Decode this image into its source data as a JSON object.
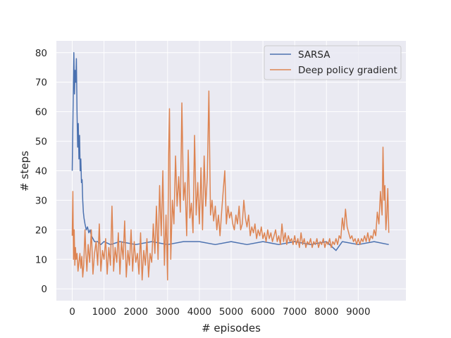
{
  "chart_data": {
    "type": "line",
    "title": "",
    "xlabel": "# episodes",
    "ylabel": "# steps",
    "xlim": [
      -500,
      10500
    ],
    "ylim": [
      -4,
      84
    ],
    "xticks": [
      0,
      1000,
      2000,
      3000,
      4000,
      5000,
      6000,
      7000,
      8000,
      9000
    ],
    "yticks": [
      0,
      10,
      20,
      30,
      40,
      50,
      60,
      70,
      80
    ],
    "grid": true,
    "background_color": "#eaeaf2",
    "legend_placement": "upper right",
    "series": [
      {
        "name": "SARSA",
        "color": "#4c72b0",
        "points": [
          [
            0,
            40
          ],
          [
            30,
            65
          ],
          [
            50,
            80
          ],
          [
            70,
            66
          ],
          [
            90,
            74
          ],
          [
            110,
            70
          ],
          [
            130,
            78
          ],
          [
            150,
            60
          ],
          [
            170,
            48
          ],
          [
            190,
            56
          ],
          [
            210,
            44
          ],
          [
            230,
            52
          ],
          [
            250,
            40
          ],
          [
            270,
            44
          ],
          [
            290,
            36
          ],
          [
            310,
            37
          ],
          [
            330,
            30
          ],
          [
            350,
            26
          ],
          [
            370,
            24
          ],
          [
            400,
            22
          ],
          [
            440,
            20
          ],
          [
            480,
            21
          ],
          [
            520,
            19
          ],
          [
            560,
            20
          ],
          [
            600,
            18
          ],
          [
            650,
            17
          ],
          [
            700,
            16
          ],
          [
            800,
            16
          ],
          [
            900,
            15
          ],
          [
            1000,
            16
          ],
          [
            1200,
            15
          ],
          [
            1500,
            16
          ],
          [
            2000,
            15
          ],
          [
            2500,
            16
          ],
          [
            3000,
            15
          ],
          [
            3500,
            16
          ],
          [
            4000,
            16
          ],
          [
            4500,
            15
          ],
          [
            5000,
            16
          ],
          [
            5500,
            15
          ],
          [
            6000,
            16
          ],
          [
            6500,
            15
          ],
          [
            7000,
            16
          ],
          [
            7500,
            15
          ],
          [
            8000,
            16
          ],
          [
            8300,
            13
          ],
          [
            8500,
            16
          ],
          [
            9000,
            15
          ],
          [
            9500,
            16
          ],
          [
            9960,
            15
          ]
        ]
      },
      {
        "name": "Deep policy gradient",
        "color": "#dd8452",
        "points": [
          [
            0,
            18
          ],
          [
            20,
            33
          ],
          [
            40,
            10
          ],
          [
            60,
            20
          ],
          [
            80,
            8
          ],
          [
            100,
            14
          ],
          [
            120,
            10
          ],
          [
            150,
            12
          ],
          [
            180,
            6
          ],
          [
            210,
            9
          ],
          [
            240,
            12
          ],
          [
            270,
            7
          ],
          [
            300,
            11
          ],
          [
            330,
            4
          ],
          [
            360,
            8
          ],
          [
            400,
            20
          ],
          [
            430,
            12
          ],
          [
            460,
            6
          ],
          [
            500,
            15
          ],
          [
            550,
            9
          ],
          [
            600,
            20
          ],
          [
            650,
            5
          ],
          [
            700,
            12
          ],
          [
            750,
            16
          ],
          [
            800,
            8
          ],
          [
            850,
            22
          ],
          [
            900,
            6
          ],
          [
            950,
            13
          ],
          [
            1000,
            10
          ],
          [
            1050,
            17
          ],
          [
            1100,
            5
          ],
          [
            1150,
            14
          ],
          [
            1200,
            8
          ],
          [
            1250,
            28
          ],
          [
            1300,
            6
          ],
          [
            1350,
            14
          ],
          [
            1400,
            9
          ],
          [
            1450,
            19
          ],
          [
            1500,
            5
          ],
          [
            1550,
            16
          ],
          [
            1600,
            10
          ],
          [
            1650,
            23
          ],
          [
            1700,
            4
          ],
          [
            1750,
            13
          ],
          [
            1800,
            8
          ],
          [
            1850,
            20
          ],
          [
            1900,
            6
          ],
          [
            1950,
            16
          ],
          [
            2000,
            9
          ],
          [
            2050,
            12
          ],
          [
            2100,
            5
          ],
          [
            2150,
            19
          ],
          [
            2200,
            3
          ],
          [
            2250,
            13
          ],
          [
            2300,
            8
          ],
          [
            2350,
            17
          ],
          [
            2400,
            4
          ],
          [
            2450,
            12
          ],
          [
            2500,
            9
          ],
          [
            2550,
            22
          ],
          [
            2600,
            12
          ],
          [
            2650,
            28
          ],
          [
            2700,
            10
          ],
          [
            2750,
            35
          ],
          [
            2800,
            18
          ],
          [
            2850,
            40
          ],
          [
            2900,
            8
          ],
          [
            2950,
            25
          ],
          [
            3000,
            3
          ],
          [
            3030,
            45
          ],
          [
            3060,
            61
          ],
          [
            3100,
            10
          ],
          [
            3150,
            30
          ],
          [
            3200,
            22
          ],
          [
            3250,
            45
          ],
          [
            3300,
            28
          ],
          [
            3350,
            38
          ],
          [
            3400,
            26
          ],
          [
            3450,
            63
          ],
          [
            3500,
            30
          ],
          [
            3550,
            36
          ],
          [
            3600,
            18
          ],
          [
            3650,
            47
          ],
          [
            3700,
            24
          ],
          [
            3750,
            29
          ],
          [
            3800,
            19
          ],
          [
            3850,
            52
          ],
          [
            3900,
            25
          ],
          [
            3950,
            36
          ],
          [
            4000,
            22
          ],
          [
            4050,
            41
          ],
          [
            4100,
            20
          ],
          [
            4150,
            45
          ],
          [
            4200,
            28
          ],
          [
            4250,
            38
          ],
          [
            4300,
            67
          ],
          [
            4350,
            25
          ],
          [
            4400,
            30
          ],
          [
            4450,
            23
          ],
          [
            4500,
            28
          ],
          [
            4550,
            20
          ],
          [
            4600,
            25
          ],
          [
            4650,
            18
          ],
          [
            4700,
            26
          ],
          [
            4750,
            33
          ],
          [
            4800,
            40
          ],
          [
            4850,
            22
          ],
          [
            4900,
            28
          ],
          [
            4950,
            24
          ],
          [
            5000,
            26
          ],
          [
            5050,
            22
          ],
          [
            5100,
            20
          ],
          [
            5150,
            25
          ],
          [
            5200,
            22
          ],
          [
            5250,
            28
          ],
          [
            5300,
            20
          ],
          [
            5350,
            22
          ],
          [
            5400,
            30
          ],
          [
            5450,
            24
          ],
          [
            5500,
            21
          ],
          [
            5550,
            25
          ],
          [
            5600,
            18
          ],
          [
            5650,
            21
          ],
          [
            5700,
            19
          ],
          [
            5750,
            22
          ],
          [
            5800,
            17
          ],
          [
            5850,
            20
          ],
          [
            5900,
            18
          ],
          [
            5950,
            21
          ],
          [
            6000,
            17
          ],
          [
            6050,
            19
          ],
          [
            6100,
            16
          ],
          [
            6150,
            20
          ],
          [
            6200,
            17
          ],
          [
            6250,
            19
          ],
          [
            6300,
            16
          ],
          [
            6350,
            18
          ],
          [
            6400,
            20
          ],
          [
            6450,
            16
          ],
          [
            6500,
            18
          ],
          [
            6550,
            15
          ],
          [
            6600,
            22
          ],
          [
            6650,
            16
          ],
          [
            6700,
            19
          ],
          [
            6750,
            15
          ],
          [
            6800,
            18
          ],
          [
            6850,
            16
          ],
          [
            6900,
            17
          ],
          [
            6950,
            15
          ],
          [
            7000,
            18
          ],
          [
            7050,
            15
          ],
          [
            7100,
            17
          ],
          [
            7150,
            14
          ],
          [
            7200,
            19
          ],
          [
            7250,
            15
          ],
          [
            7300,
            17
          ],
          [
            7350,
            14
          ],
          [
            7400,
            16
          ],
          [
            7450,
            15
          ],
          [
            7500,
            17
          ],
          [
            7550,
            14
          ],
          [
            7600,
            16
          ],
          [
            7650,
            15
          ],
          [
            7700,
            17
          ],
          [
            7750,
            14
          ],
          [
            7800,
            16
          ],
          [
            7850,
            15
          ],
          [
            7900,
            17
          ],
          [
            7950,
            14
          ],
          [
            8000,
            16
          ],
          [
            8050,
            15
          ],
          [
            8100,
            17
          ],
          [
            8150,
            14
          ],
          [
            8200,
            16
          ],
          [
            8250,
            15
          ],
          [
            8300,
            17
          ],
          [
            8350,
            15
          ],
          [
            8400,
            18
          ],
          [
            8450,
            17
          ],
          [
            8500,
            24
          ],
          [
            8550,
            20
          ],
          [
            8600,
            27
          ],
          [
            8650,
            21
          ],
          [
            8700,
            19
          ],
          [
            8750,
            17
          ],
          [
            8800,
            18
          ],
          [
            8850,
            16
          ],
          [
            8900,
            17
          ],
          [
            8950,
            15
          ],
          [
            9000,
            17
          ],
          [
            9050,
            15
          ],
          [
            9100,
            17
          ],
          [
            9150,
            16
          ],
          [
            9200,
            18
          ],
          [
            9250,
            16
          ],
          [
            9300,
            19
          ],
          [
            9350,
            16
          ],
          [
            9400,
            18
          ],
          [
            9450,
            17
          ],
          [
            9500,
            20
          ],
          [
            9550,
            18
          ],
          [
            9600,
            26
          ],
          [
            9650,
            22
          ],
          [
            9700,
            33
          ],
          [
            9750,
            25
          ],
          [
            9780,
            48
          ],
          [
            9810,
            30
          ],
          [
            9840,
            35
          ],
          [
            9870,
            20
          ],
          [
            9900,
            25
          ],
          [
            9930,
            34
          ],
          [
            9960,
            19
          ]
        ]
      }
    ]
  }
}
